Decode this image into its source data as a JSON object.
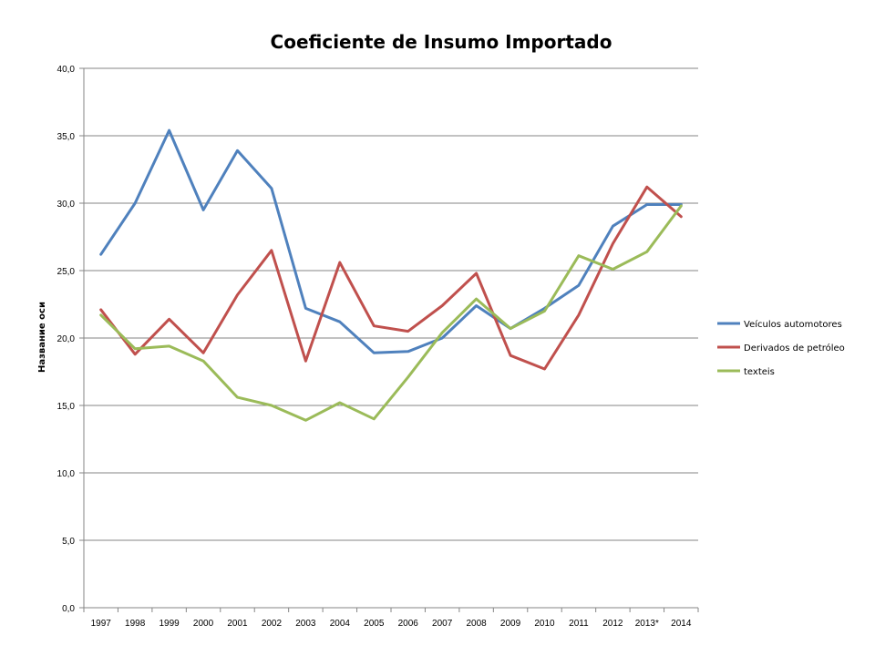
{
  "chart_data": {
    "type": "line",
    "title": "Coeficiente de Insumo Importado",
    "ylabel": "Название оси",
    "xlabel": "",
    "ylim": [
      0,
      40
    ],
    "y_ticks": [
      "0,0",
      "5,0",
      "10,0",
      "15,0",
      "20,0",
      "25,0",
      "30,0",
      "35,0",
      "40,0"
    ],
    "grid": "horizontal",
    "legend_position": "right",
    "categories": [
      "1997",
      "1998",
      "1999",
      "2000",
      "2001",
      "2002",
      "2003",
      "2004",
      "2005",
      "2006",
      "2007",
      "2008",
      "2009",
      "2010",
      "2011",
      "2012",
      "2013*",
      "2014"
    ],
    "series": [
      {
        "name": "Veículos automotores",
        "color": "#4F81BD",
        "values": [
          26.2,
          30.0,
          35.4,
          29.5,
          33.9,
          31.1,
          22.2,
          21.2,
          18.9,
          19.0,
          20.0,
          22.4,
          20.7,
          22.2,
          23.9,
          28.3,
          29.9,
          29.9
        ]
      },
      {
        "name": "Derivados de petróleo",
        "color": "#C0504D",
        "values": [
          22.1,
          18.8,
          21.4,
          18.9,
          23.2,
          26.5,
          18.3,
          25.6,
          20.9,
          20.5,
          22.4,
          24.8,
          18.7,
          17.7,
          21.7,
          27.0,
          31.2,
          29.0
        ]
      },
      {
        "name": "texteis",
        "color": "#9BBB59",
        "values": [
          21.7,
          19.2,
          19.4,
          18.3,
          15.6,
          15.0,
          13.9,
          15.2,
          14.0,
          17.1,
          20.4,
          22.9,
          20.7,
          22.0,
          26.1,
          25.1,
          26.4,
          29.8
        ]
      }
    ]
  }
}
